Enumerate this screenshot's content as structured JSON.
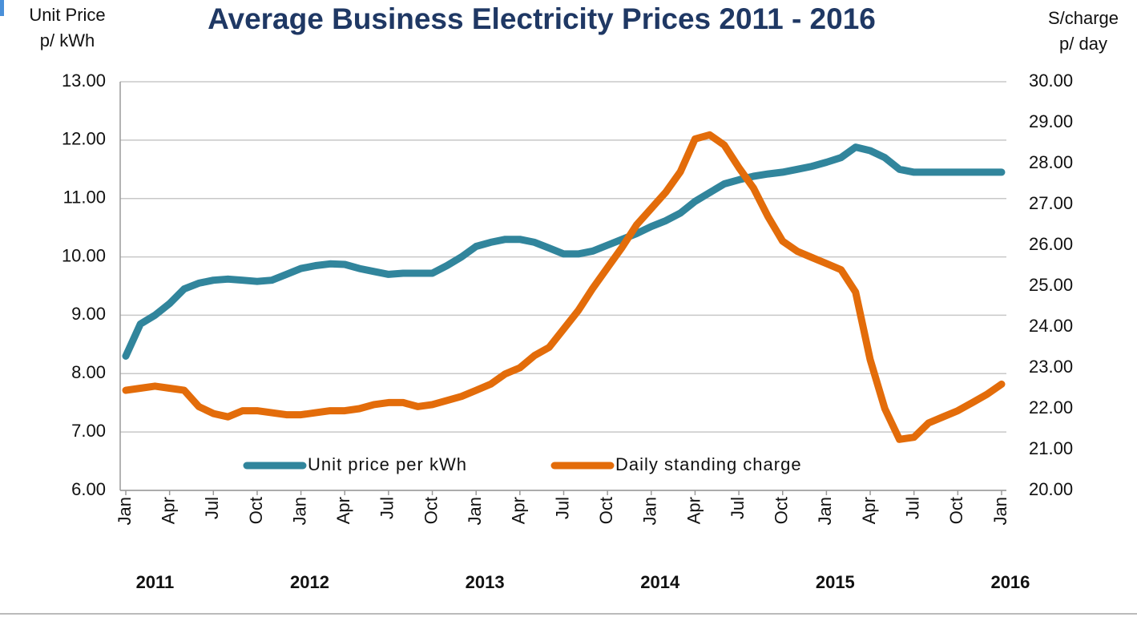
{
  "chart_data": {
    "type": "line",
    "title": "Average Business Electricity Prices 2011 - 2016",
    "y_label": [
      "Unit Price",
      "p/ kWh"
    ],
    "y2_label": [
      "S/charge",
      "p/ day"
    ],
    "categories": [
      "Jan",
      null,
      null,
      "Apr",
      null,
      null,
      "Jul",
      null,
      null,
      "Oct",
      null,
      null,
      "Jan",
      null,
      null,
      "Apr",
      null,
      null,
      "Jul",
      null,
      null,
      "Oct",
      null,
      null,
      "Jan",
      null,
      null,
      "Apr",
      null,
      null,
      "Jul",
      null,
      null,
      "Oct",
      null,
      null,
      "Jan",
      null,
      null,
      "Apr",
      null,
      null,
      "Jul",
      null,
      null,
      "Oct",
      null,
      null,
      "Jan",
      null,
      null,
      "Apr",
      null,
      null,
      "Jul",
      null,
      null,
      "Oct",
      null,
      null,
      "Jan"
    ],
    "years": [
      "2011",
      "2012",
      "2013",
      "2014",
      "2015",
      "2016"
    ],
    "series": [
      {
        "name": "Unit price per kWh",
        "color": "#31859c",
        "axis": "y",
        "values": [
          8.3,
          8.85,
          9.0,
          9.2,
          9.45,
          9.55,
          9.6,
          9.62,
          9.6,
          9.58,
          9.6,
          9.7,
          9.8,
          9.85,
          9.88,
          9.87,
          9.8,
          9.75,
          9.7,
          9.72,
          9.72,
          9.72,
          9.85,
          10.0,
          10.18,
          10.25,
          10.3,
          10.3,
          10.25,
          10.15,
          10.05,
          10.05,
          10.1,
          10.2,
          10.3,
          10.4,
          10.52,
          10.62,
          10.75,
          10.95,
          11.1,
          11.25,
          11.32,
          11.38,
          11.42,
          11.45,
          11.5,
          11.55,
          11.62,
          11.7,
          11.88,
          11.82,
          11.7,
          11.5,
          11.45,
          11.45,
          11.45,
          11.45,
          11.45,
          11.45,
          11.45
        ]
      },
      {
        "name": "Daily standing charge",
        "color": "#e36c0a",
        "axis": "y2",
        "values": [
          22.45,
          22.5,
          22.55,
          22.5,
          22.45,
          22.05,
          21.88,
          21.8,
          21.95,
          21.95,
          21.9,
          21.85,
          21.85,
          21.9,
          21.95,
          21.95,
          22.0,
          22.1,
          22.15,
          22.15,
          22.05,
          22.1,
          22.2,
          22.3,
          22.45,
          22.6,
          22.85,
          23.0,
          23.3,
          23.5,
          23.95,
          24.4,
          24.95,
          25.45,
          25.95,
          26.5,
          26.9,
          27.3,
          27.8,
          28.6,
          28.7,
          28.45,
          27.9,
          27.4,
          26.7,
          26.1,
          25.85,
          25.7,
          25.55,
          25.4,
          24.85,
          23.2,
          22.0,
          21.25,
          21.3,
          21.65,
          21.8,
          21.95,
          22.15,
          22.35,
          22.6
        ]
      }
    ],
    "ylim": [
      6,
      13
    ],
    "yticks": [
      {
        "value": 6,
        "label": "6.00"
      },
      {
        "value": 7,
        "label": "7.00"
      },
      {
        "value": 8,
        "label": "8.00"
      },
      {
        "value": 9,
        "label": "9.00"
      },
      {
        "value": 10,
        "label": "10.00"
      },
      {
        "value": 11,
        "label": "11.00"
      },
      {
        "value": 12,
        "label": "12.00"
      },
      {
        "value": 13,
        "label": "13.00"
      }
    ],
    "y2lim": [
      20,
      30
    ],
    "y2ticks": [
      {
        "value": 20,
        "label": "20.00"
      },
      {
        "value": 21,
        "label": "21.00"
      },
      {
        "value": 22,
        "label": "22.00"
      },
      {
        "value": 23,
        "label": "23.00"
      },
      {
        "value": 24,
        "label": "24.00"
      },
      {
        "value": 25,
        "label": "25.00"
      },
      {
        "value": 26,
        "label": "26.00"
      },
      {
        "value": 27,
        "label": "27.00"
      },
      {
        "value": 28,
        "label": "28.00"
      },
      {
        "value": 29,
        "label": "29.00"
      },
      {
        "value": 30,
        "label": "30.00"
      }
    ],
    "grid": true,
    "legend": "bottom"
  }
}
